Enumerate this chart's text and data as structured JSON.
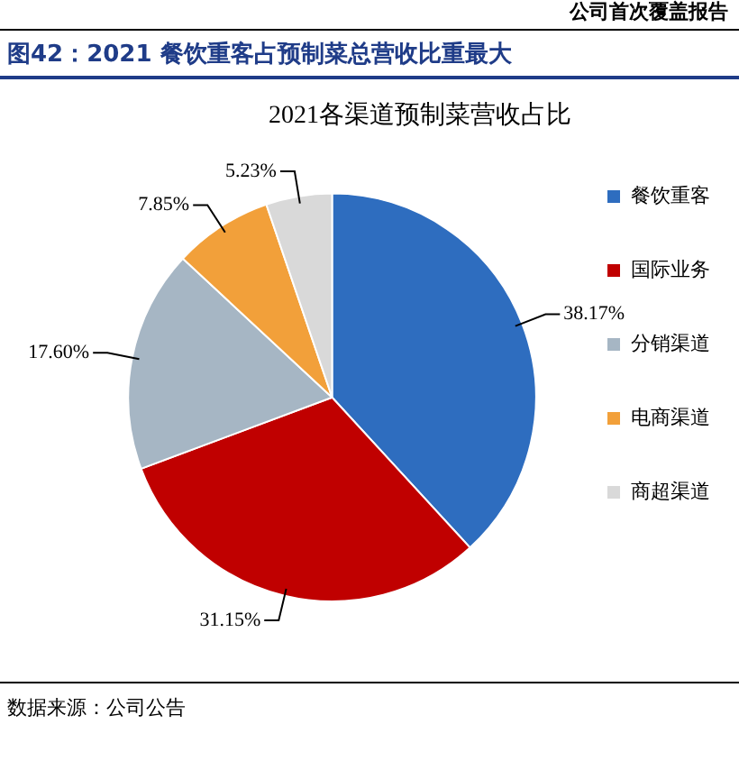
{
  "chart_data": {
    "type": "pie",
    "title": "2021各渠道预制菜营收占比",
    "subtitle": "图42：2021 餐饮重客占预制菜总营收比重最大",
    "categories": [
      "餐饮重客",
      "国际业务",
      "分销渠道",
      "电商渠道",
      "商超渠道"
    ],
    "values": [
      38.17,
      31.15,
      17.6,
      7.85,
      5.23
    ],
    "value_labels": [
      "38.17%",
      "31.15%",
      "17.60%",
      "7.85%",
      "5.23%"
    ],
    "colors": [
      "#2e6dbf",
      "#c00000",
      "#a6b6c4",
      "#f2a03a",
      "#d9d9d9"
    ],
    "legend": "right",
    "annotations": [
      "公司首次覆盖报告",
      "数据来源：公司公告"
    ]
  }
}
